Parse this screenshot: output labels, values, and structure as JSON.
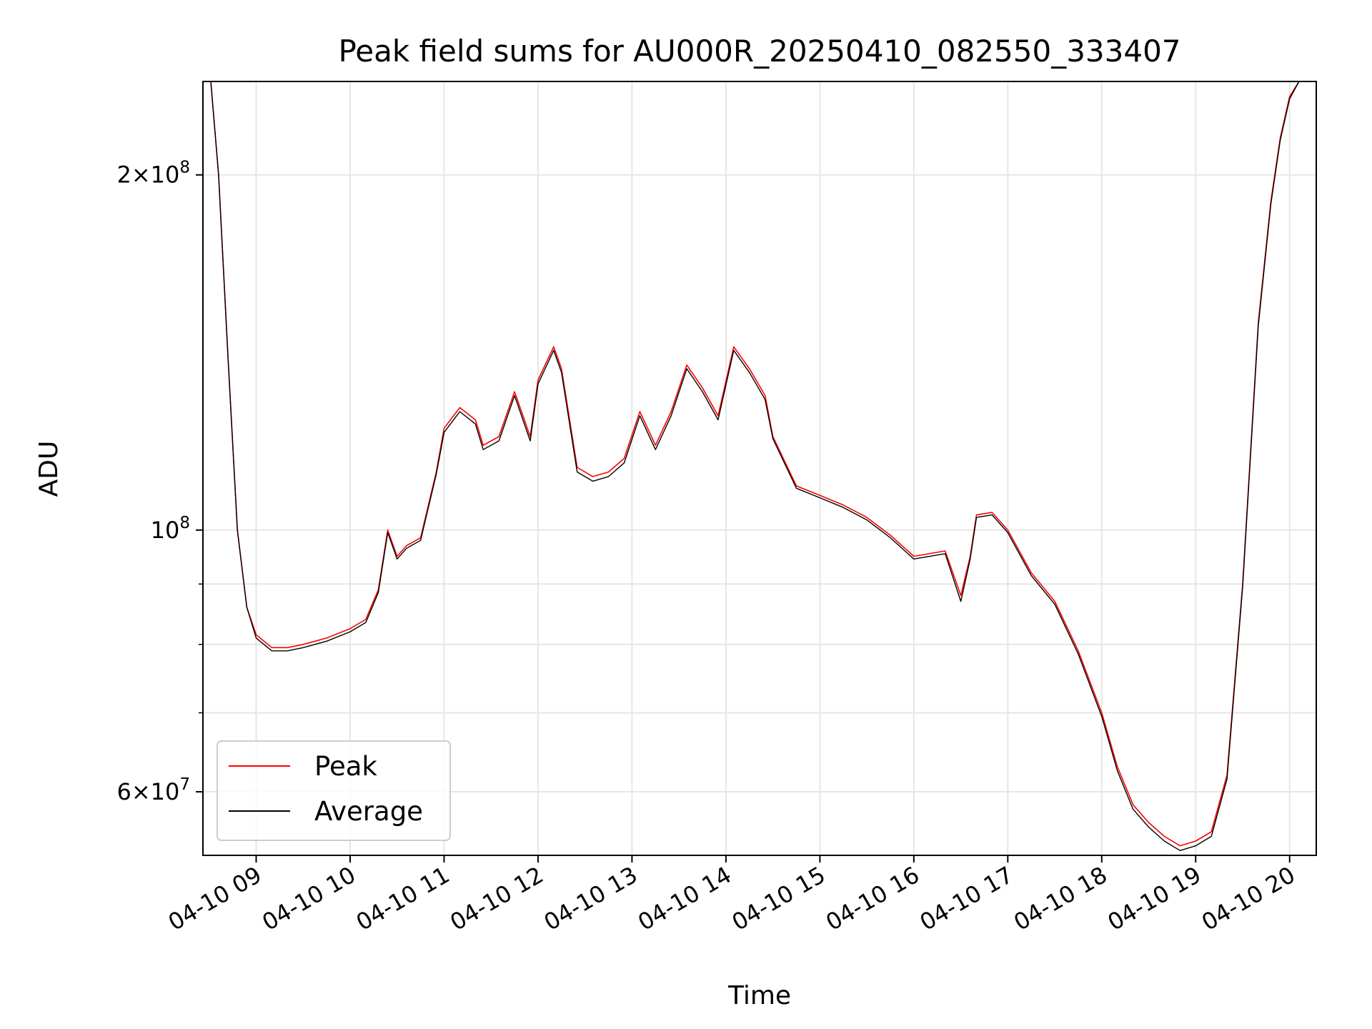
{
  "chart_data": {
    "type": "line",
    "title": "Peak field sums for AU000R_20250410_082550_333407",
    "xlabel": "Time",
    "ylabel": "ADU",
    "yscale": "log",
    "grid": true,
    "legend_position": "lower-left",
    "xlim": [
      "04-10 08:26",
      "04-10 20:17"
    ],
    "ylim": [
      53000000,
      240000000
    ],
    "x_ticks": [
      "04-10 09",
      "04-10 10",
      "04-10 11",
      "04-10 12",
      "04-10 13",
      "04-10 14",
      "04-10 15",
      "04-10 16",
      "04-10 17",
      "04-10 18",
      "04-10 19",
      "04-10 20"
    ],
    "y_ticks": [
      {
        "value": 60000000,
        "mantissa": "6",
        "exponent": "7"
      },
      {
        "value": 100000000,
        "mantissa": "",
        "exponent": "8"
      },
      {
        "value": 200000000,
        "mantissa": "2",
        "exponent": "8"
      }
    ],
    "y_minor_ticks": [
      70000000,
      80000000,
      90000000
    ],
    "x": [
      "04-10 08:26",
      "04-10 08:31",
      "04-10 08:36",
      "04-10 08:42",
      "04-10 08:48",
      "04-10 08:54",
      "04-10 09:00",
      "04-10 09:10",
      "04-10 09:20",
      "04-10 09:30",
      "04-10 09:45",
      "04-10 10:00",
      "04-10 10:10",
      "04-10 10:18",
      "04-10 10:24",
      "04-10 10:30",
      "04-10 10:36",
      "04-10 10:45",
      "04-10 10:50",
      "04-10 10:55",
      "04-10 11:00",
      "04-10 11:10",
      "04-10 11:20",
      "04-10 11:25",
      "04-10 11:35",
      "04-10 11:45",
      "04-10 11:55",
      "04-10 12:00",
      "04-10 12:10",
      "04-10 12:15",
      "04-10 12:25",
      "04-10 12:35",
      "04-10 12:45",
      "04-10 12:55",
      "04-10 13:05",
      "04-10 13:15",
      "04-10 13:25",
      "04-10 13:35",
      "04-10 13:45",
      "04-10 13:55",
      "04-10 14:05",
      "04-10 14:15",
      "04-10 14:25",
      "04-10 14:30",
      "04-10 14:45",
      "04-10 15:00",
      "04-10 15:15",
      "04-10 15:30",
      "04-10 15:45",
      "04-10 16:00",
      "04-10 16:20",
      "04-10 16:30",
      "04-10 16:36",
      "04-10 16:40",
      "04-10 16:50",
      "04-10 17:00",
      "04-10 17:15",
      "04-10 17:30",
      "04-10 17:45",
      "04-10 18:00",
      "04-10 18:10",
      "04-10 18:20",
      "04-10 18:30",
      "04-10 18:40",
      "04-10 18:50",
      "04-10 19:00",
      "04-10 19:10",
      "04-10 19:20",
      "04-10 19:30",
      "04-10 19:40",
      "04-10 19:48",
      "04-10 19:54",
      "04-10 20:00",
      "04-10 20:06",
      "04-10 20:10",
      "04-10 20:15"
    ],
    "series": [
      {
        "name": "Peak",
        "color": "#ff0000",
        "values": [
          240000000,
          240000000,
          200000000,
          140000000,
          100000000,
          86000000,
          81500000,
          79500000,
          79500000,
          80000000,
          81000000,
          82500000,
          84000000,
          89000000,
          100000000,
          95000000,
          97000000,
          98500000,
          105000000,
          112000000,
          122000000,
          127000000,
          124000000,
          118000000,
          120000000,
          131000000,
          120000000,
          134000000,
          143000000,
          137000000,
          113000000,
          111000000,
          112000000,
          115000000,
          126000000,
          118000000,
          126000000,
          138000000,
          132000000,
          125000000,
          143000000,
          137000000,
          130000000,
          120000000,
          109000000,
          107000000,
          105000000,
          102500000,
          99000000,
          95000000,
          96000000,
          88000000,
          95000000,
          103000000,
          103500000,
          100000000,
          92000000,
          87000000,
          79000000,
          70000000,
          63000000,
          58500000,
          56500000,
          55000000,
          54000000,
          54500000,
          55500000,
          62000000,
          90000000,
          150000000,
          190000000,
          215000000,
          233000000,
          240000000,
          240000000,
          240000000
        ]
      },
      {
        "name": "Average",
        "color": "#000000",
        "values": [
          240000000,
          240000000,
          200000000,
          140000000,
          100000000,
          86000000,
          81000000,
          79000000,
          79000000,
          79500000,
          80500000,
          82000000,
          83500000,
          88500000,
          99500000,
          94500000,
          96500000,
          98000000,
          104500000,
          111500000,
          121000000,
          126000000,
          123000000,
          117000000,
          119000000,
          130000000,
          119000000,
          133000000,
          142000000,
          136000000,
          112000000,
          110000000,
          111000000,
          114000000,
          125000000,
          117000000,
          125000000,
          137000000,
          131000000,
          124000000,
          142000000,
          136000000,
          129000000,
          119500000,
          108500000,
          106500000,
          104500000,
          102000000,
          98500000,
          94500000,
          95500000,
          87000000,
          94500000,
          102500000,
          103000000,
          99500000,
          91500000,
          86500000,
          78500000,
          69500000,
          62500000,
          58000000,
          56000000,
          54500000,
          53500000,
          54000000,
          55000000,
          61500000,
          89500000,
          149000000,
          189000000,
          214000000,
          232000000,
          240000000,
          240000000,
          240000000
        ]
      }
    ]
  }
}
